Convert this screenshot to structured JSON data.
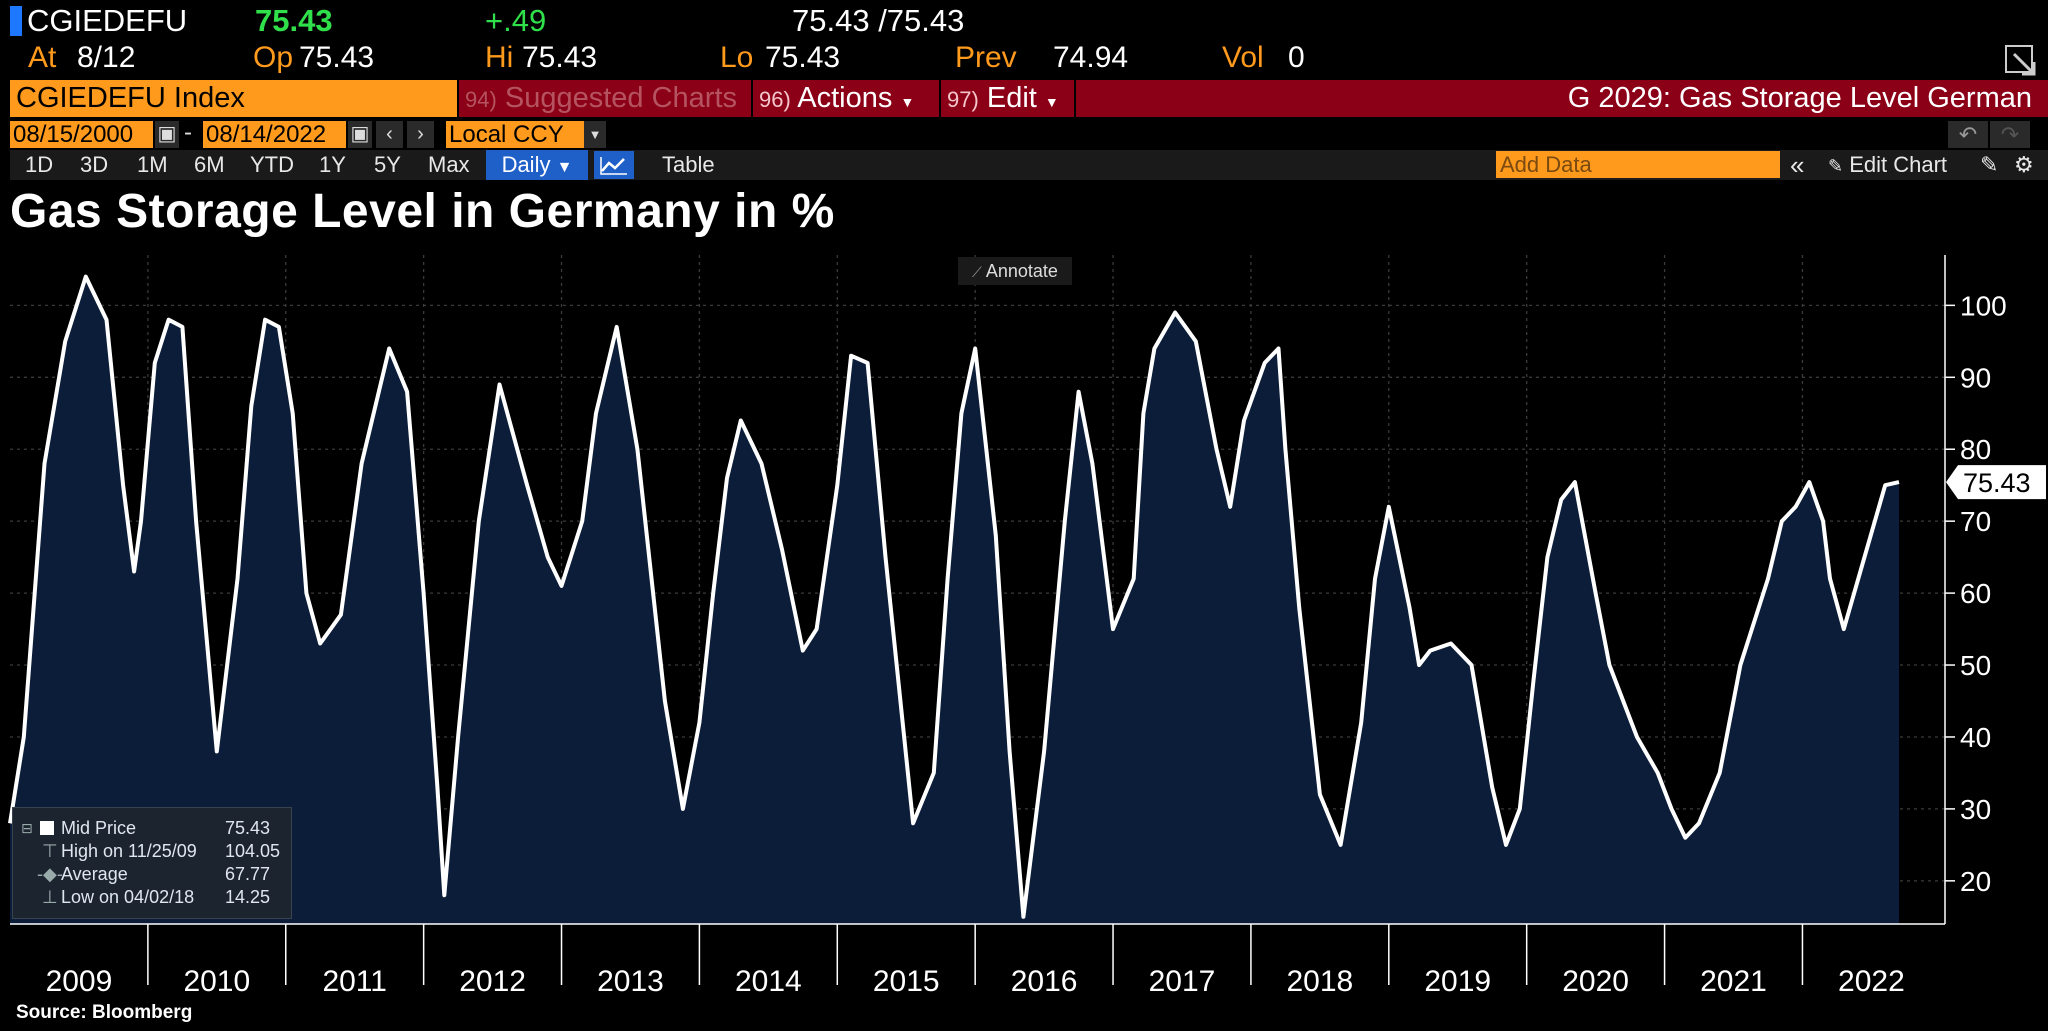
{
  "quote": {
    "ticker": "CGIEDEFU",
    "last": "75.43",
    "change": "+.49",
    "bid_ask": "75.43 /75.43",
    "at_label": "At",
    "at_value": "8/12",
    "op_label": "Op",
    "op_value": "75.43",
    "hi_label": "Hi",
    "hi_value": "75.43",
    "lo_label": "Lo",
    "lo_value": "75.43",
    "prev_label": "Prev",
    "prev_value": "74.94",
    "vol_label": "Vol",
    "vol_value": "0"
  },
  "titlebar": {
    "index_label": "CGIEDEFU Index",
    "suggested_num": "94)",
    "suggested_label": "Suggested Charts",
    "actions_num": "96)",
    "actions_label": "Actions",
    "edit_num": "97)",
    "edit_label": "Edit",
    "function_title": "G 2029: Gas Storage Level German"
  },
  "controls": {
    "start_date": "08/15/2000",
    "date_sep": "-",
    "end_date": "08/14/2022",
    "currency": "Local CCY",
    "ranges": [
      "1D",
      "3D",
      "1M",
      "6M",
      "YTD",
      "1Y",
      "5Y",
      "Max"
    ],
    "frequency": "Daily",
    "table_label": "Table",
    "add_data_placeholder": "Add Data",
    "edit_chart_label": "Edit Chart"
  },
  "annotate_label": "Annotate",
  "legend": {
    "rows": [
      {
        "label": "Mid Price",
        "value": "75.43"
      },
      {
        "label": "High on 11/25/09",
        "value": "104.05"
      },
      {
        "label": "Average",
        "value": "67.77"
      },
      {
        "label": "Low on 04/02/18",
        "value": "14.25"
      }
    ]
  },
  "source": "Source: Bloomberg",
  "colors": {
    "orange": "#ff9a1c",
    "red_bar": "#8b0016",
    "area_fill": "#0b1d38",
    "line": "#ffffff",
    "up": "#2fe04a"
  },
  "chart_data": {
    "type": "area",
    "title": "Gas Storage Level in Germany in %",
    "series": [
      {
        "name": "Mid Price",
        "x": [
          2009.0,
          2009.1,
          2009.25,
          2009.4,
          2009.55,
          2009.7,
          2009.82,
          2009.9,
          2009.95,
          2010.05,
          2010.15,
          2010.25,
          2010.35,
          2010.5,
          2010.65,
          2010.75,
          2010.85,
          2010.95,
          2011.05,
          2011.15,
          2011.25,
          2011.4,
          2011.55,
          2011.75,
          2011.88,
          2012.0,
          2012.1,
          2012.15,
          2012.25,
          2012.4,
          2012.55,
          2012.75,
          2012.9,
          2013.0,
          2013.15,
          2013.25,
          2013.4,
          2013.55,
          2013.75,
          2013.88,
          2014.0,
          2014.1,
          2014.2,
          2014.3,
          2014.45,
          2014.6,
          2014.75,
          2014.85,
          2015.0,
          2015.1,
          2015.22,
          2015.35,
          2015.55,
          2015.7,
          2015.8,
          2015.9,
          2016.0,
          2016.15,
          2016.25,
          2016.35,
          2016.5,
          2016.65,
          2016.75,
          2016.85,
          2017.0,
          2017.15,
          2017.22,
          2017.3,
          2017.45,
          2017.6,
          2017.75,
          2017.85,
          2017.95,
          2018.1,
          2018.2,
          2018.25,
          2018.35,
          2018.5,
          2018.65,
          2018.8,
          2018.9,
          2019.0,
          2019.15,
          2019.22,
          2019.3,
          2019.45,
          2019.6,
          2019.75,
          2019.85,
          2019.95,
          2020.05,
          2020.15,
          2020.25,
          2020.35,
          2020.5,
          2020.6,
          2020.7,
          2020.8,
          2020.95,
          2021.05,
          2021.15,
          2021.25,
          2021.4,
          2021.55,
          2021.75,
          2021.85,
          2021.95,
          2022.05,
          2022.15,
          2022.2,
          2022.3,
          2022.45,
          2022.6,
          2022.7
        ],
        "y": [
          28,
          40,
          78,
          95,
          104,
          98,
          75,
          63,
          70,
          92,
          98,
          97,
          70,
          38,
          62,
          86,
          98,
          97,
          85,
          60,
          53,
          57,
          78,
          94,
          88,
          60,
          33,
          18,
          40,
          70,
          89,
          75,
          65,
          61,
          70,
          85,
          97,
          80,
          45,
          30,
          42,
          60,
          76,
          84,
          78,
          66,
          52,
          55,
          75,
          93,
          92,
          65,
          28,
          35,
          62,
          85,
          94,
          68,
          38,
          15,
          38,
          70,
          88,
          78,
          55,
          62,
          85,
          94,
          99,
          95,
          80,
          72,
          84,
          92,
          94,
          80,
          58,
          32,
          25,
          42,
          62,
          72,
          58,
          50,
          52,
          53,
          50,
          33,
          25,
          30,
          48,
          65,
          73,
          75.43,
          60,
          50,
          45,
          40,
          35,
          30,
          26,
          28,
          35,
          50,
          62,
          70,
          72,
          75.43,
          70,
          62,
          55,
          65,
          75,
          75.43
        ]
      }
    ],
    "x_tick_labels": [
      "2009",
      "2010",
      "2011",
      "2012",
      "2013",
      "2014",
      "2015",
      "2016",
      "2017",
      "2018",
      "2019",
      "2020",
      "2021",
      "2022"
    ],
    "y_ticks": [
      20,
      30,
      40,
      50,
      60,
      70,
      80,
      90,
      100
    ],
    "ylim": [
      14,
      107
    ],
    "last_value_label": "75.43",
    "grid": true,
    "legend_position": "bottom-left"
  }
}
